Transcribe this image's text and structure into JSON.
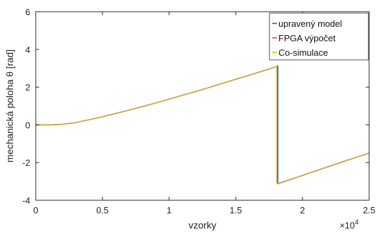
{
  "chart_data": {
    "type": "line",
    "xlabel": "vzorky",
    "ylabel": "mechanická poloha θ [rad]",
    "x_exponent": "×10",
    "x_exponent_power": "4",
    "xlim": [
      0,
      2.5
    ],
    "ylim": [
      -4,
      6
    ],
    "x_ticks": [
      0,
      0.5,
      1,
      1.5,
      2,
      2.5
    ],
    "x_tick_labels": [
      "0",
      "0.5",
      "1",
      "1.5",
      "2",
      "2.5"
    ],
    "y_ticks": [
      -4,
      -2,
      0,
      2,
      4,
      6
    ],
    "y_tick_labels": [
      "-4",
      "-2",
      "0",
      "2",
      "4",
      "6"
    ],
    "grid": false,
    "legend_position": "top-right",
    "series": [
      {
        "name": "upravený model",
        "color": "#0072bd",
        "x": [
          0,
          0.1,
          0.2,
          0.3,
          0.4,
          0.5,
          0.6,
          0.7,
          0.8,
          0.9,
          1.0,
          1.1,
          1.2,
          1.3,
          1.4,
          1.5,
          1.6,
          1.7,
          1.8,
          1.815,
          1.815,
          2.0,
          2.2,
          2.4,
          2.5
        ],
        "y": [
          0,
          0,
          0.03,
          0.12,
          0.27,
          0.43,
          0.6,
          0.78,
          0.97,
          1.16,
          1.36,
          1.57,
          1.77,
          1.98,
          2.2,
          2.42,
          2.63,
          2.85,
          3.07,
          3.12,
          -3.12,
          -2.68,
          -2.2,
          -1.73,
          -1.5
        ]
      },
      {
        "name": "FPGA výpočet",
        "color": "#d95319",
        "x": [
          0,
          0.1,
          0.2,
          0.3,
          0.4,
          0.5,
          0.6,
          0.7,
          0.8,
          0.9,
          1.0,
          1.1,
          1.2,
          1.3,
          1.4,
          1.5,
          1.6,
          1.7,
          1.8,
          1.808,
          1.808,
          2.0,
          2.2,
          2.4,
          2.5
        ],
        "y": [
          0,
          0,
          0.03,
          0.12,
          0.27,
          0.43,
          0.6,
          0.78,
          0.97,
          1.16,
          1.36,
          1.57,
          1.77,
          1.98,
          2.2,
          2.42,
          2.63,
          2.85,
          3.07,
          3.1,
          -3.12,
          -2.68,
          -2.2,
          -1.73,
          -1.5
        ]
      },
      {
        "name": "Co-simulace",
        "color": "#edb120",
        "x": [
          0,
          0.1,
          0.2,
          0.3,
          0.4,
          0.5,
          0.6,
          0.7,
          0.8,
          0.9,
          1.0,
          1.1,
          1.2,
          1.3,
          1.4,
          1.5,
          1.6,
          1.7,
          1.8,
          1.808,
          1.808,
          2.0,
          2.2,
          2.4,
          2.5
        ],
        "y": [
          0,
          0,
          0.03,
          0.12,
          0.27,
          0.43,
          0.6,
          0.78,
          0.97,
          1.16,
          1.36,
          1.57,
          1.77,
          1.98,
          2.2,
          2.42,
          2.63,
          2.85,
          3.07,
          3.1,
          -3.12,
          -2.68,
          -2.2,
          -1.73,
          -1.5
        ]
      }
    ]
  }
}
